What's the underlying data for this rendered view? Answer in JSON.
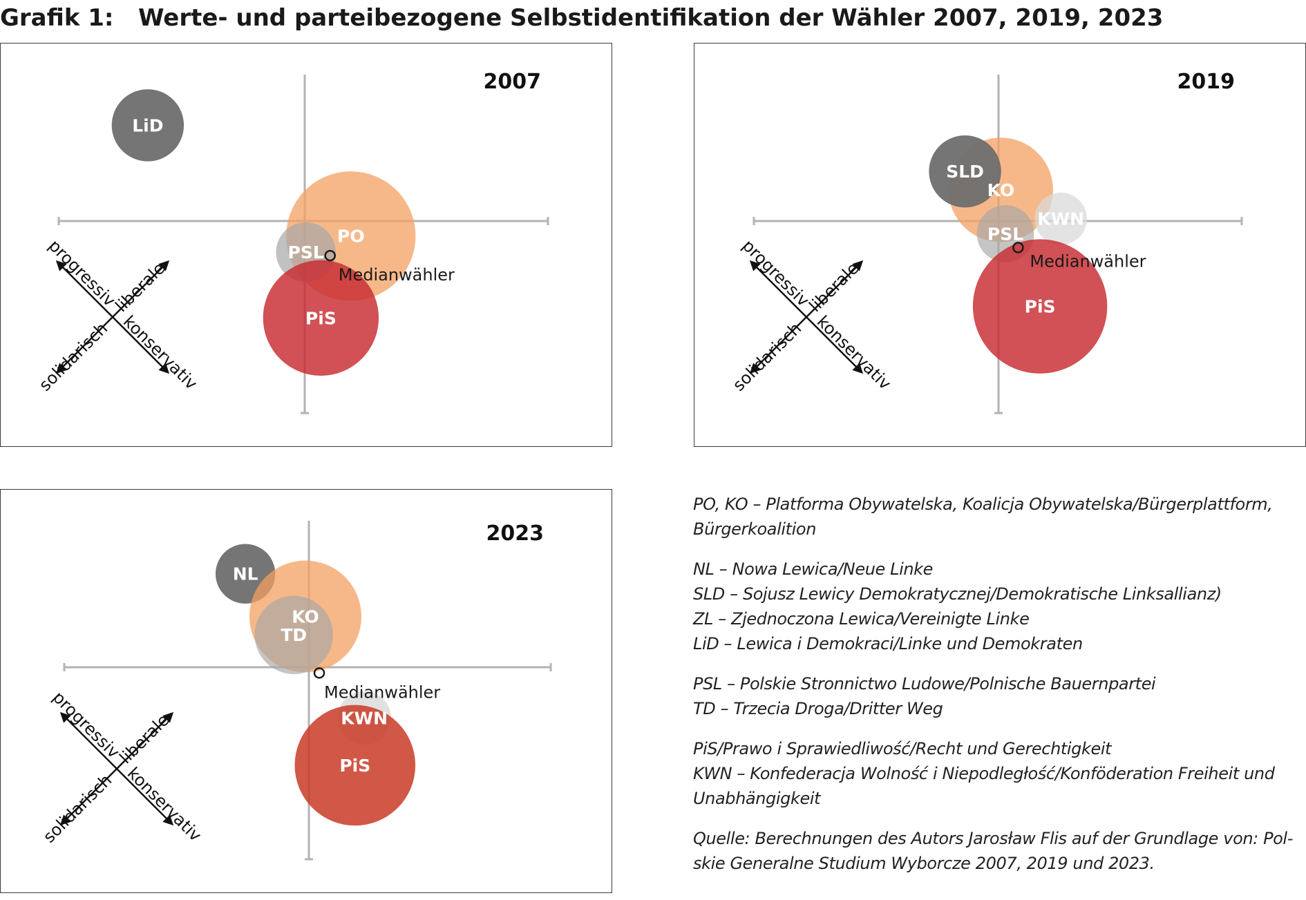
{
  "title": {
    "label": "Grafik 1:",
    "text": "Werte- und parteibezogene Selbstidentifikation der Wähler 2007, 2019, 2023"
  },
  "axis_labels": {
    "ne": "liberale",
    "nw": "progressiv",
    "sw": "solidarisch",
    "se": "konservativ"
  },
  "chart_data": [
    {
      "type": "bubble",
      "year": "2007",
      "median_label": "Medianwähler",
      "axes": [
        "progressiv-konservativ",
        "solidarisch-liberale"
      ],
      "bubbles": [
        {
          "label": "LiD",
          "x": -1.36,
          "y": 0.83,
          "size": 0.58,
          "color": "#6e6e6e",
          "opacity": 0.95
        },
        {
          "label": "PO",
          "x": 0.4,
          "y": -0.13,
          "size": 1.04,
          "color": "#f4a062",
          "opacity": 0.75
        },
        {
          "label": "PSL",
          "x": 0.01,
          "y": -0.27,
          "size": 0.48,
          "color": "#a6a6a6",
          "opacity": 0.7
        },
        {
          "label": "PiS",
          "x": 0.14,
          "y": -0.84,
          "size": 0.93,
          "color": "#c72b31",
          "opacity": 0.82
        }
      ],
      "median": {
        "x": 0.22,
        "y": -0.3
      }
    },
    {
      "type": "bubble",
      "year": "2019",
      "median_label": "Medianwähler",
      "axes": [
        "progressiv-konservativ",
        "solidarisch-liberale"
      ],
      "bubbles": [
        {
          "label": "KO",
          "x": 0.02,
          "y": 0.27,
          "size": 0.84,
          "color": "#f4a062",
          "opacity": 0.75
        },
        {
          "label": "SLD",
          "x": -0.29,
          "y": 0.43,
          "size": 0.58,
          "color": "#6e6e6e",
          "opacity": 0.95
        },
        {
          "label": "PSL",
          "x": 0.06,
          "y": -0.11,
          "size": 0.46,
          "color": "#a6a6a6",
          "opacity": 0.65
        },
        {
          "label": "KWN",
          "x": 0.54,
          "y": 0.02,
          "size": 0.42,
          "color": "#d9d9d9",
          "opacity": 0.75
        },
        {
          "label": "PiS",
          "x": 0.36,
          "y": -0.74,
          "size": 1.08,
          "color": "#c72b31",
          "opacity": 0.82
        }
      ],
      "median": {
        "x": 0.17,
        "y": -0.23
      }
    },
    {
      "type": "bubble",
      "year": "2023",
      "median_label": "Medianwähler",
      "axes": [
        "progressiv-konservativ",
        "solidarisch-liberale"
      ],
      "bubbles": [
        {
          "label": "NL",
          "x": -0.55,
          "y": 0.81,
          "size": 0.48,
          "color": "#6e6e6e",
          "opacity": 0.95
        },
        {
          "label": "KO",
          "x": -0.03,
          "y": 0.44,
          "size": 0.9,
          "color": "#f4a062",
          "opacity": 0.75
        },
        {
          "label": "TD",
          "x": -0.13,
          "y": 0.28,
          "size": 0.63,
          "color": "#a6a6a6",
          "opacity": 0.65
        },
        {
          "label": "KWN",
          "x": 0.48,
          "y": -0.44,
          "size": 0.43,
          "color": "#d9d9d9",
          "opacity": 0.8
        },
        {
          "label": "PiS",
          "x": 0.4,
          "y": -0.85,
          "size": 0.97,
          "color": "#c93b26",
          "opacity": 0.85
        }
      ],
      "median": {
        "x": 0.09,
        "y": -0.05
      }
    }
  ],
  "legend": {
    "groups": [
      [
        "PO, KO – Platforma Obywatelska, Koalicja Obywatelska/Bürgerplattform,",
        "Bürgerkoalition"
      ],
      [
        "NL – Nowa Lewica/Neue Linke",
        "SLD – Sojusz Lewicy Demokratycznej/Demokratische Linksallianz)",
        "ZL – Zjednoczona Lewica/Vereinigte Linke",
        "LiD – Lewica i Demokraci/Linke und Demokraten"
      ],
      [
        "PSL – Polskie Stronnictwo Ludowe/Polnische Bauernpartei",
        "TD – Trzecia Droga/Dritter Weg"
      ],
      [
        "PiS/Prawo i Sprawiedliwość/Recht und Gerechtigkeit",
        "KWN – Konfederacja Wolność i Niepodległość/Konföderation Freiheit und",
        "Unabhängigkeit"
      ]
    ],
    "source": [
      "Quelle:  Berechnungen des Autors Jarosław Flis auf der Grundlage von: Pol-",
      "skie Generalne Studium Wyborcze 2007, 2019 und 2023."
    ]
  }
}
